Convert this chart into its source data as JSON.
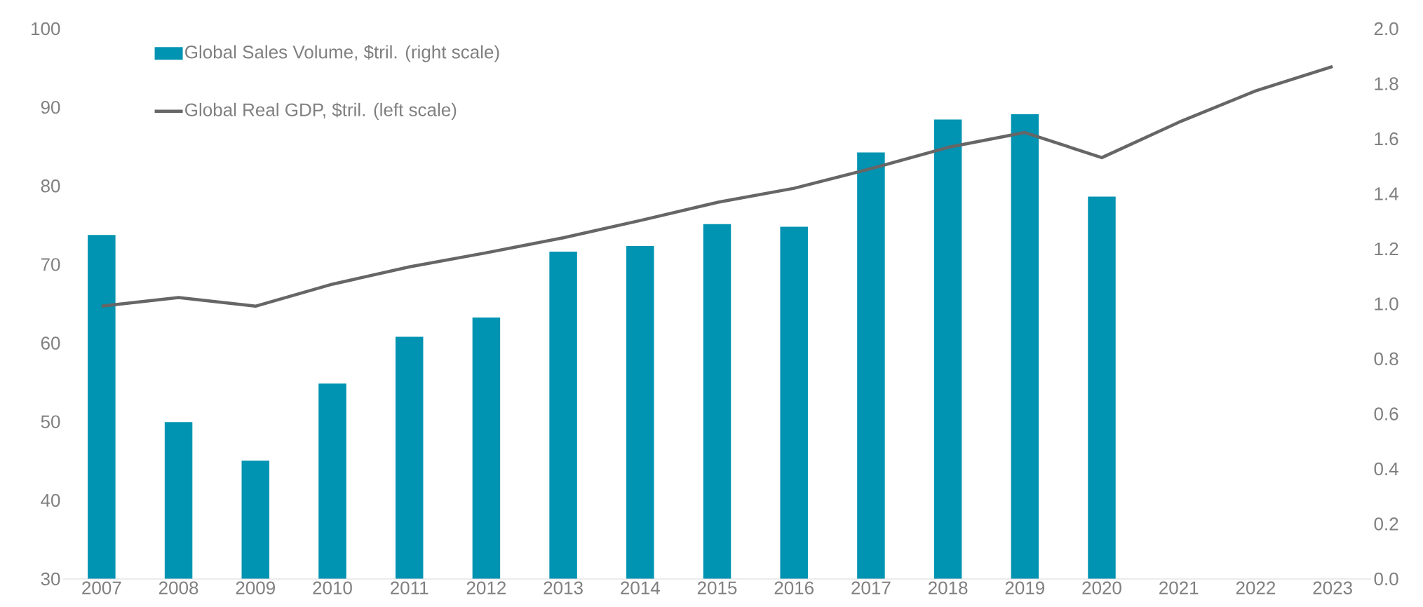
{
  "chart_data": {
    "type": "bar",
    "categories": [
      "2007",
      "2008",
      "2009",
      "2010",
      "2011",
      "2012",
      "2013",
      "2014",
      "2015",
      "2016",
      "2017",
      "2018",
      "2019",
      "2020",
      "2021",
      "2022",
      "2023"
    ],
    "series": [
      {
        "name": "Global Sales Volume, $tril. (right scale)",
        "axis": "y2",
        "color": "#0093b2",
        "values": [
          1.25,
          0.57,
          0.43,
          0.71,
          0.88,
          0.95,
          1.19,
          1.21,
          1.29,
          1.28,
          1.55,
          1.67,
          1.69,
          1.39,
          null,
          null,
          null
        ]
      },
      {
        "name": "Global Real GDP, $tril. (left scale)",
        "type": "line",
        "color": "#666666",
        "values": [
          64.7,
          65.8,
          64.7,
          67.5,
          69.7,
          71.5,
          73.4,
          75.6,
          77.9,
          79.7,
          82.2,
          84.9,
          86.8,
          83.6,
          88.1,
          92.1,
          95.2
        ]
      }
    ],
    "ylim": [
      30,
      100
    ],
    "yticks": [
      30,
      40,
      50,
      60,
      70,
      80,
      90,
      100
    ],
    "y2lim": [
      0,
      2
    ],
    "y2ticks": [
      {
        "value": 0,
        "label": "0.0"
      },
      0.2,
      0.4,
      0.6,
      0.8,
      {
        "value": 1,
        "label": "1.0"
      },
      1.2,
      1.4,
      1.6,
      1.8,
      {
        "value": 2,
        "label": "2.0"
      }
    ],
    "legend": "top left",
    "grid": false,
    "marker": "none"
  }
}
